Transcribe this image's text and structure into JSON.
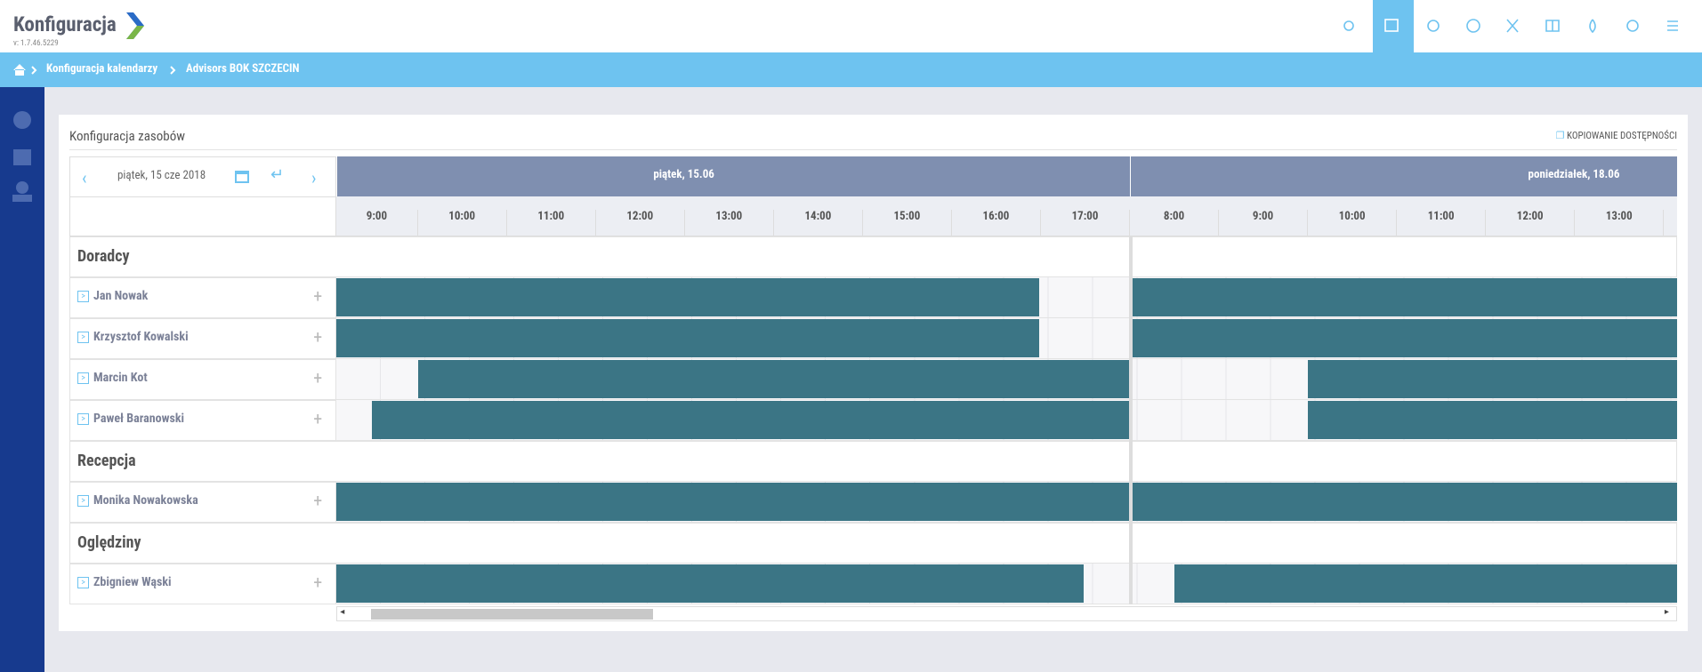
{
  "header": {
    "title": "Konfiguracja",
    "version": "v: 1.7.46.5229"
  },
  "breadcrumb": [
    "Konfiguracja kalendarzy",
    "Advisors BOK SZCZECIN"
  ],
  "panel": {
    "title": "Konfiguracja zasobów",
    "copy_button": "KOPIOWANIE DOSTĘPNOŚCI",
    "date": "piątek, 15 cze 2018"
  },
  "days": [
    {
      "label": "piątek, 15.06",
      "hours": [
        "9:00",
        "10:00",
        "11:00",
        "12:00",
        "13:00",
        "14:00",
        "15:00",
        "16:00",
        "17:00"
      ]
    },
    {
      "label": "poniedziałek, 18.06",
      "hours": [
        "8:00",
        "9:00",
        "10:00",
        "11:00",
        "12:00",
        "13:00"
      ]
    }
  ],
  "groups": [
    {
      "name": "Doradcy",
      "people": [
        "Jan Nowak",
        "Krzysztof Kowalski",
        "Marcin Kot",
        "Paweł Baranowski"
      ]
    },
    {
      "name": "Recepcja",
      "people": [
        "Monika Nowakowska"
      ]
    },
    {
      "name": "Oględziny",
      "people": [
        "Zbigniew Wąski"
      ]
    }
  ]
}
